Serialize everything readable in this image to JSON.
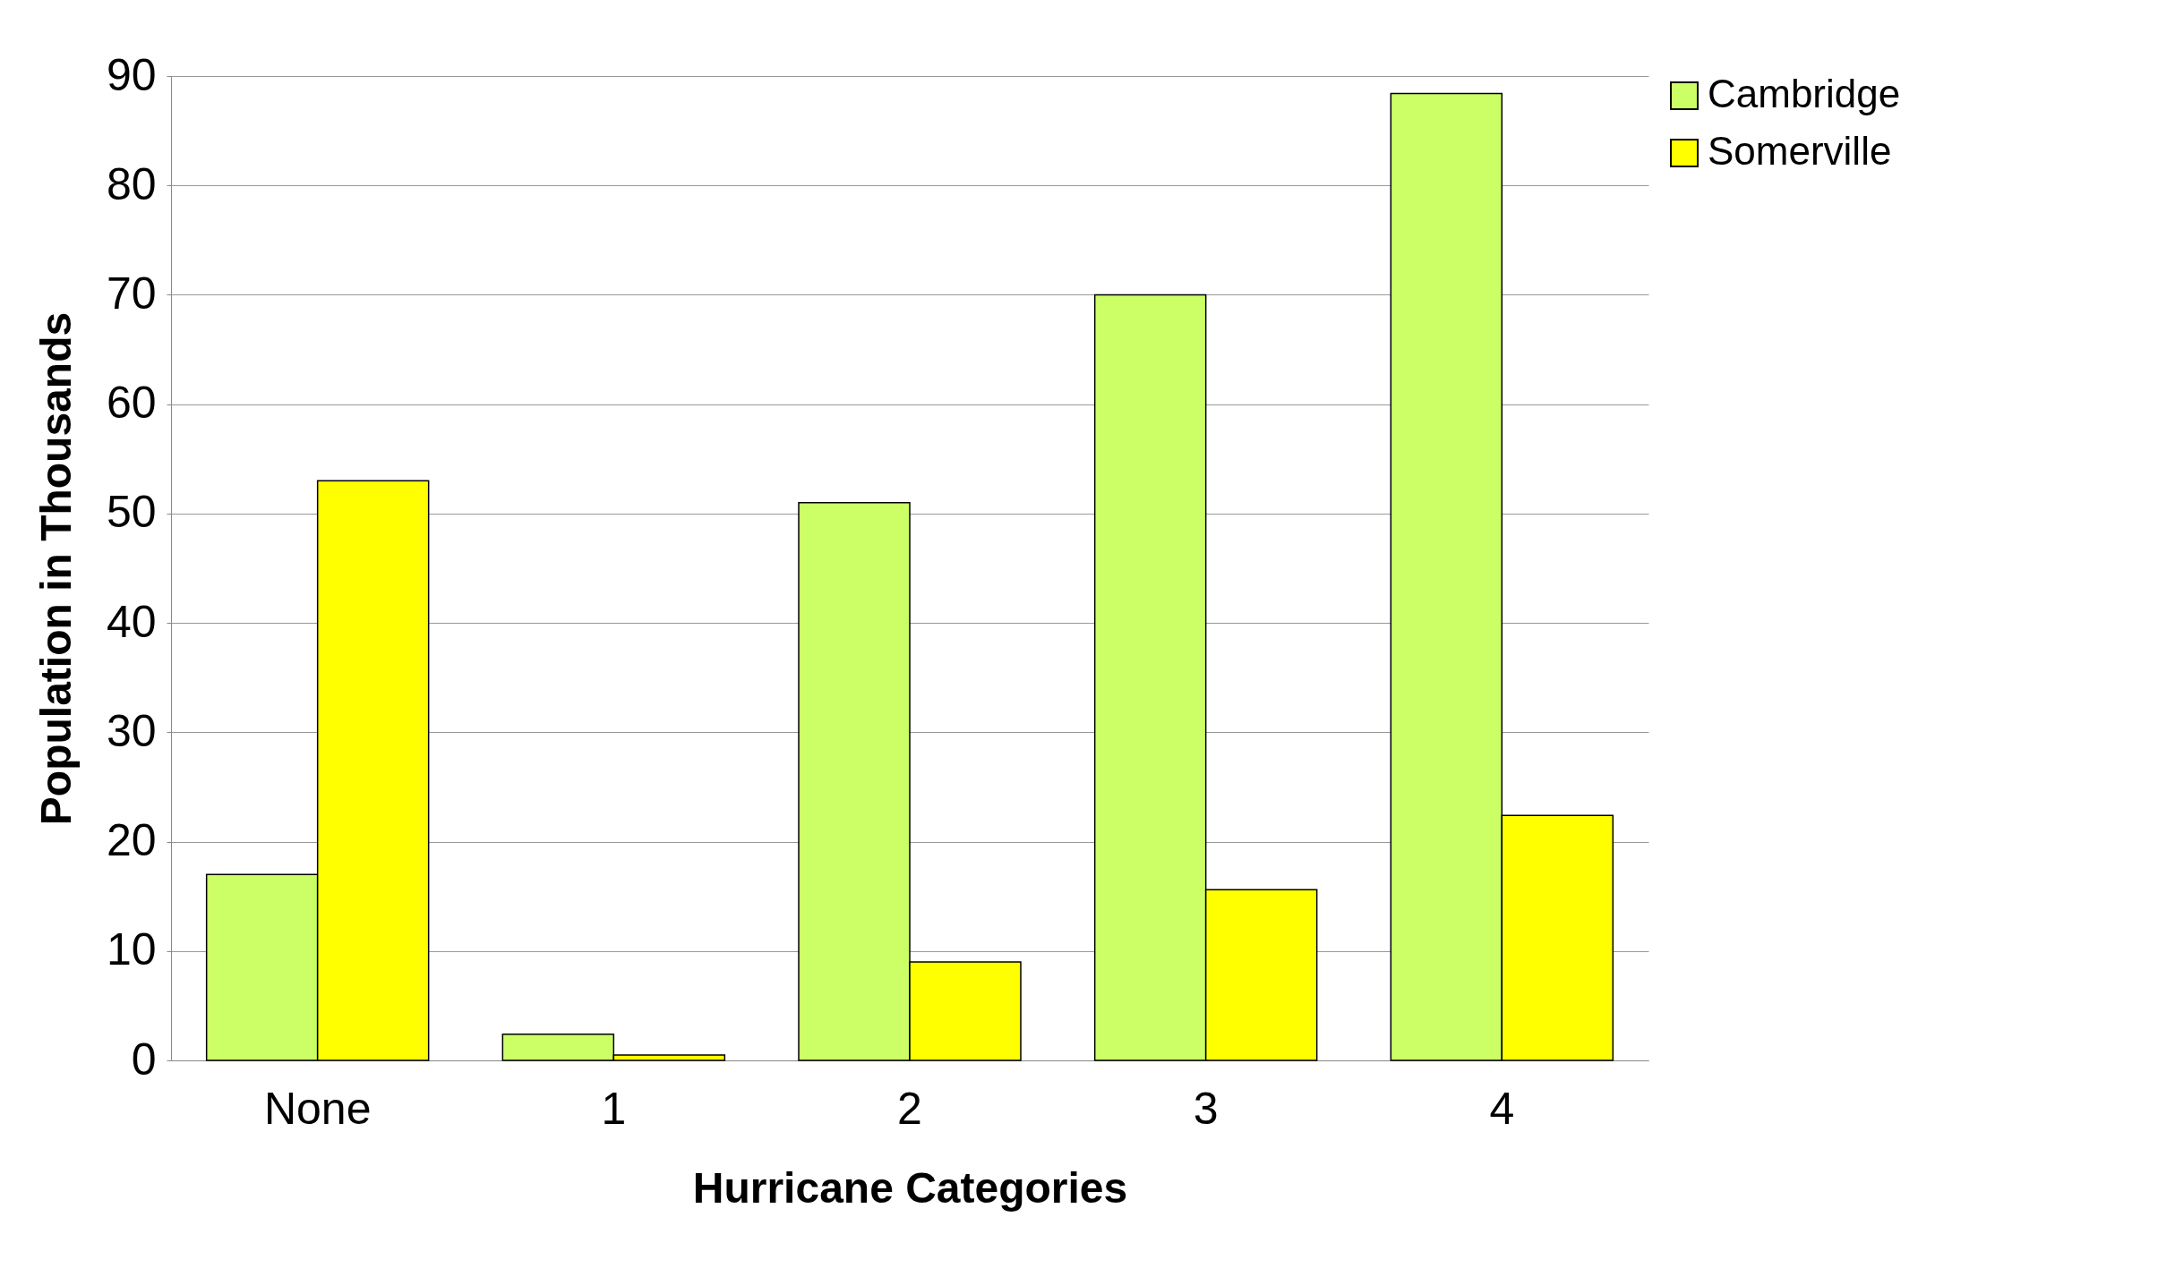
{
  "chart_data": {
    "type": "bar",
    "xlabel": "Hurricane Categories",
    "ylabel": "Population in Thousands",
    "categories": [
      "None",
      "1",
      "2",
      "3",
      "4"
    ],
    "series": [
      {
        "name": "Cambridge",
        "color": "#ccff66",
        "values": [
          17,
          2.4,
          51,
          70,
          88.4
        ]
      },
      {
        "name": "Somerville",
        "color": "#ffff00",
        "values": [
          53,
          0.5,
          9,
          15.6,
          22.4
        ]
      }
    ],
    "ylim": [
      0,
      90
    ],
    "yticks": [
      0,
      10,
      20,
      30,
      40,
      50,
      60,
      70,
      80,
      90
    ],
    "grid": "y",
    "legend": "right"
  }
}
